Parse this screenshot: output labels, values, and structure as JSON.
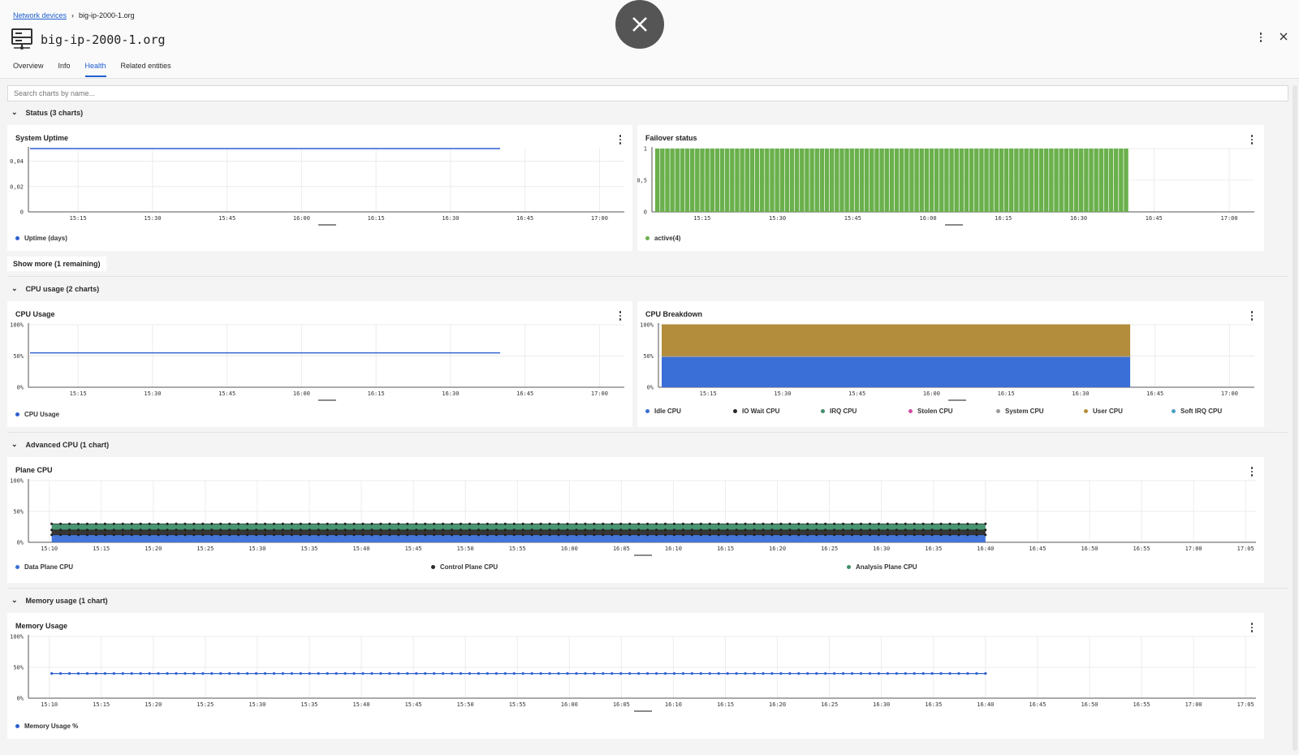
{
  "breadcrumb": {
    "parent": "Network devices",
    "current": "big-ip-2000-1.org"
  },
  "entity": {
    "title": "big-ip-2000-1.org",
    "icon": "server-icon"
  },
  "tabs": [
    {
      "label": "Overview",
      "active": false
    },
    {
      "label": "Info",
      "active": false
    },
    {
      "label": "Health",
      "active": true
    },
    {
      "label": "Related entities",
      "active": false
    }
  ],
  "search": {
    "placeholder": "Search charts by name..."
  },
  "sections": {
    "status": "Status (3 charts)",
    "cpu": "CPU usage (2 charts)",
    "advanced": "Advanced CPU (1 chart)",
    "memory": "Memory usage (1 chart)"
  },
  "show_more": "Show more (1 remaining)",
  "colors": {
    "accent": "#1f5fd1",
    "blue": "#3b6fd8",
    "green": "#6ab04c",
    "gold": "#b38d3c",
    "teal": "#3f8f6a",
    "dark": "#2a2a2a",
    "pink": "#d24ea6",
    "gray": "#9a9a9a",
    "cyan": "#4a9fc3",
    "lineblue": "#2f5fd0"
  },
  "cards": {
    "uptime": {
      "title": "System Uptime"
    },
    "failover": {
      "title": "Failover status"
    },
    "cpu_usage": {
      "title": "CPU Usage"
    },
    "cpu_breakdown": {
      "title": "CPU Breakdown"
    },
    "plane_cpu": {
      "title": "Plane CPU"
    },
    "memory": {
      "title": "Memory Usage"
    }
  },
  "chart_data": [
    {
      "id": "uptime",
      "type": "line",
      "title": "System Uptime",
      "x_ticks": [
        "15:15",
        "15:30",
        "15:45",
        "16:00",
        "16:15",
        "16:30",
        "16:45",
        "17:00"
      ],
      "y_ticks": [
        "0",
        "0,02",
        "0,04"
      ],
      "ylim": [
        0,
        0.05
      ],
      "series": [
        {
          "name": "Uptime (days)",
          "color": "#2f5fd0",
          "value": 0.05,
          "x_start": "15:05",
          "x_end": "16:40"
        }
      ]
    },
    {
      "id": "failover",
      "type": "bar",
      "title": "Failover status",
      "x_ticks": [
        "15:15",
        "15:30",
        "15:45",
        "16:00",
        "16:15",
        "16:30",
        "16:45",
        "17:00"
      ],
      "y_ticks": [
        "0",
        "0,5",
        "1"
      ],
      "ylim": [
        0,
        1
      ],
      "series": [
        {
          "name": "active(4)",
          "color": "#6ab04c",
          "value": 1,
          "x_start": "15:05",
          "x_end": "16:40"
        }
      ]
    },
    {
      "id": "cpu_usage",
      "type": "line",
      "title": "CPU Usage",
      "x_ticks": [
        "15:15",
        "15:30",
        "15:45",
        "16:00",
        "16:15",
        "16:30",
        "16:45",
        "17:00"
      ],
      "y_ticks": [
        "0%",
        "50%",
        "100%"
      ],
      "ylim": [
        0,
        100
      ],
      "series": [
        {
          "name": "CPU Usage",
          "color": "#2f5fd0",
          "value": 55,
          "x_start": "15:05",
          "x_end": "16:40"
        }
      ]
    },
    {
      "id": "cpu_breakdown",
      "type": "area",
      "title": "CPU Breakdown",
      "x_ticks": [
        "15:15",
        "15:30",
        "15:45",
        "16:00",
        "16:15",
        "16:30",
        "16:45",
        "17:00"
      ],
      "y_ticks": [
        "0%",
        "50%",
        "100%"
      ],
      "ylim": [
        0,
        100
      ],
      "x_start": "15:05",
      "x_end": "16:40",
      "series": [
        {
          "name": "Idle CPU",
          "color": "#3b6fd8",
          "value": 48
        },
        {
          "name": "IO Wait CPU",
          "color": "#2a2a2a",
          "value": 0
        },
        {
          "name": "IRQ CPU",
          "color": "#3f8f6a",
          "value": 0
        },
        {
          "name": "Stolen CPU",
          "color": "#d24ea6",
          "value": 0
        },
        {
          "name": "System CPU",
          "color": "#9a9a9a",
          "value": 2
        },
        {
          "name": "User CPU",
          "color": "#b38d3c",
          "value": 50
        },
        {
          "name": "Soft IRQ CPU",
          "color": "#4a9fc3",
          "value": 0
        }
      ]
    },
    {
      "id": "plane_cpu",
      "type": "area",
      "title": "Plane CPU",
      "x_ticks": [
        "15:10",
        "15:15",
        "15:20",
        "15:25",
        "15:30",
        "15:35",
        "15:40",
        "15:45",
        "15:50",
        "15:55",
        "16:00",
        "16:05",
        "16:10",
        "16:15",
        "16:20",
        "16:25",
        "16:30",
        "16:35",
        "16:40",
        "16:45",
        "16:50",
        "16:55",
        "17:00",
        "17:05"
      ],
      "y_ticks": [
        "0%",
        "50%",
        "100%"
      ],
      "ylim": [
        0,
        100
      ],
      "x_start": "15:10",
      "x_end": "16:40",
      "series": [
        {
          "name": "Data Plane CPU",
          "color": "#3b6fd8",
          "value": 12
        },
        {
          "name": "Control Plane CPU",
          "color": "#2a2a2a",
          "value": 8
        },
        {
          "name": "Analysis Plane CPU",
          "color": "#3f8f6a",
          "value": 10
        }
      ]
    },
    {
      "id": "memory",
      "type": "line",
      "title": "Memory Usage",
      "x_ticks": [
        "15:10",
        "15:15",
        "15:20",
        "15:25",
        "15:30",
        "15:35",
        "15:40",
        "15:45",
        "15:50",
        "15:55",
        "16:00",
        "16:05",
        "16:10",
        "16:15",
        "16:20",
        "16:25",
        "16:30",
        "16:35",
        "16:40",
        "16:45",
        "16:50",
        "16:55",
        "17:00",
        "17:05"
      ],
      "y_ticks": [
        "0%",
        "50%",
        "100%"
      ],
      "ylim": [
        0,
        100
      ],
      "series": [
        {
          "name": "Memory Usage %",
          "color": "#2f5fd0",
          "value": 40,
          "x_start": "15:10",
          "x_end": "16:40"
        }
      ]
    }
  ]
}
